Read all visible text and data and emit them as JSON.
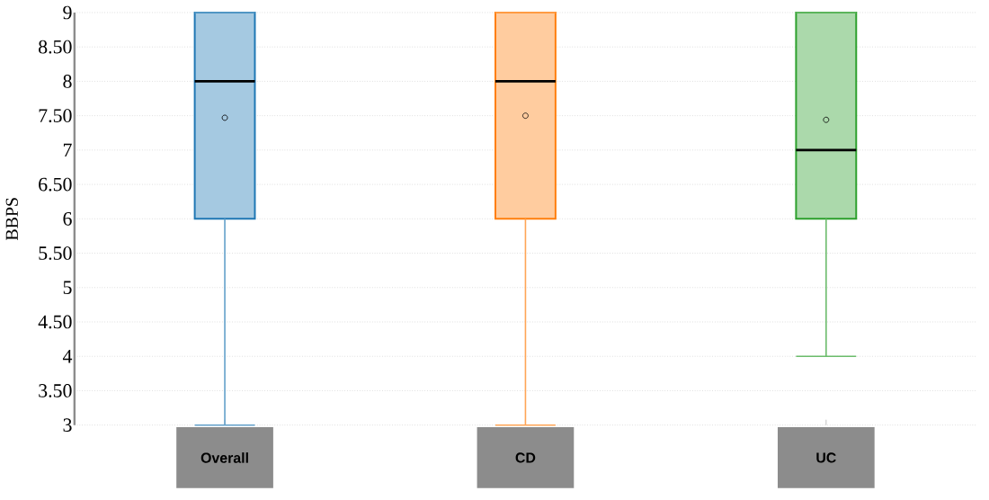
{
  "chart_data": {
    "type": "box",
    "ylabel": "BBPS",
    "categories": [
      "Overall",
      "CD",
      "UC"
    ],
    "boxes": [
      {
        "low": 3,
        "q1": 6,
        "median": 8,
        "q3": 9,
        "high": 9,
        "mean": 7.47
      },
      {
        "low": 3,
        "q1": 6,
        "median": 8,
        "q3": 9,
        "high": 9,
        "mean": 7.5
      },
      {
        "low": 4,
        "q1": 6,
        "median": 7,
        "q3": 9,
        "high": 9,
        "mean": 7.44
      }
    ],
    "colors": [
      "#1f77b4",
      "#ff7f0e",
      "#2ca02c"
    ],
    "ylim": [
      3,
      9
    ],
    "yticks": [
      3,
      {
        "value": 3.5,
        "label": "3.50"
      },
      4,
      {
        "value": 4.5,
        "label": "4.50"
      },
      5,
      {
        "value": 5.5,
        "label": "5.50"
      },
      6,
      {
        "value": 6.5,
        "label": "6.50"
      },
      7,
      {
        "value": 7.5,
        "label": "7.50"
      },
      8,
      {
        "value": 8.5,
        "label": "8.50"
      },
      9
    ],
    "grid": "y"
  }
}
